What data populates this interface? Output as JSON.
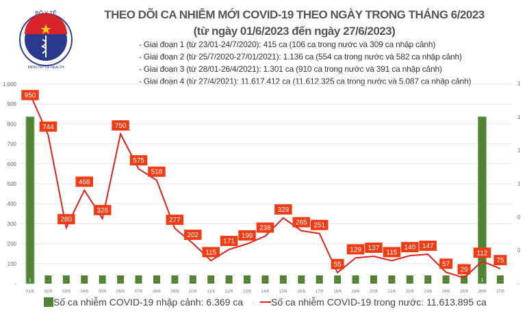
{
  "logo": {
    "top_text": "BỘ Y TẾ",
    "bottom_text": "MINISTRY OF HEALTH"
  },
  "title": "THEO DÕI CA NHIỄM MỚI COVID-19 THEO NGÀY TRONG THÁNG 6/2023",
  "subtitle": "(từ ngày 01/6/2023 đến ngày 27/6/2023)",
  "stages": [
    "- Giai đoạn 1 (từ 23/01-24/7/2020): 415 ca (106 ca trong nước và 309 ca nhập cảnh)",
    "- Giai đoạn 2 (từ 25/7/2020-27/01/2021): 1.136 ca (554 ca trong nước và 582 ca nhập cảnh)",
    "- Giai đoạn 3 (từ 28/01-26/4/2021): 1.301 ca (910 ca trong nước và 391 ca nhập cảnh)",
    "- Giai đoạn 4 (từ 27/4/2021): 11.617.412 ca (11.612.325 ca trong nước và 5.087 ca nhập cảnh)"
  ],
  "chart_data": {
    "type": "bar+line",
    "categories": [
      "01/6",
      "02/6",
      "03/6",
      "04/6",
      "05/6",
      "06/6",
      "07/6",
      "08/6",
      "09/6",
      "10/6",
      "11/6",
      "12/6",
      "13/6",
      "14/6",
      "15/6",
      "16/6",
      "17/6",
      "18/6",
      "19/6",
      "20/6",
      "21/6",
      "22/6",
      "23/6",
      "24/6",
      "25/6",
      "26/6",
      "27/6"
    ],
    "series": [
      {
        "name": "Số ca nhiễm COVID-19 nhập cảnh: 6.369 ca",
        "type": "bar",
        "axis": "right",
        "color": "#548235",
        "values": [
          1,
          0,
          0,
          0,
          0,
          0,
          0,
          0,
          0,
          0,
          0,
          0,
          0,
          0,
          0,
          0,
          0,
          0,
          0,
          0,
          0,
          0,
          0,
          0,
          0,
          1,
          0
        ]
      },
      {
        "name": "Số ca nhiễm COVID-19 trong nước: 11.613.895 ca",
        "type": "line",
        "axis": "left",
        "color": "#e0201b",
        "values": [
          950,
          744,
          280,
          468,
          326,
          750,
          575,
          518,
          277,
          202,
          115,
          171,
          199,
          238,
          329,
          265,
          251,
          55,
          129,
          137,
          115,
          140,
          147,
          57,
          29,
          112,
          75
        ]
      }
    ],
    "left_axis": {
      "ylim": [
        0,
        1000
      ],
      "ticks": [
        "-",
        "100",
        "200",
        "300",
        "400",
        "500",
        "600",
        "700",
        "800",
        "900",
        "1.000"
      ]
    },
    "right_axis": {
      "ylim": [
        0,
        1.2
      ],
      "ticks": [
        "-",
        "0",
        "0",
        "1",
        "1",
        "1",
        "1"
      ]
    },
    "zero_label": "-",
    "grid": true,
    "legend": "bottom"
  }
}
